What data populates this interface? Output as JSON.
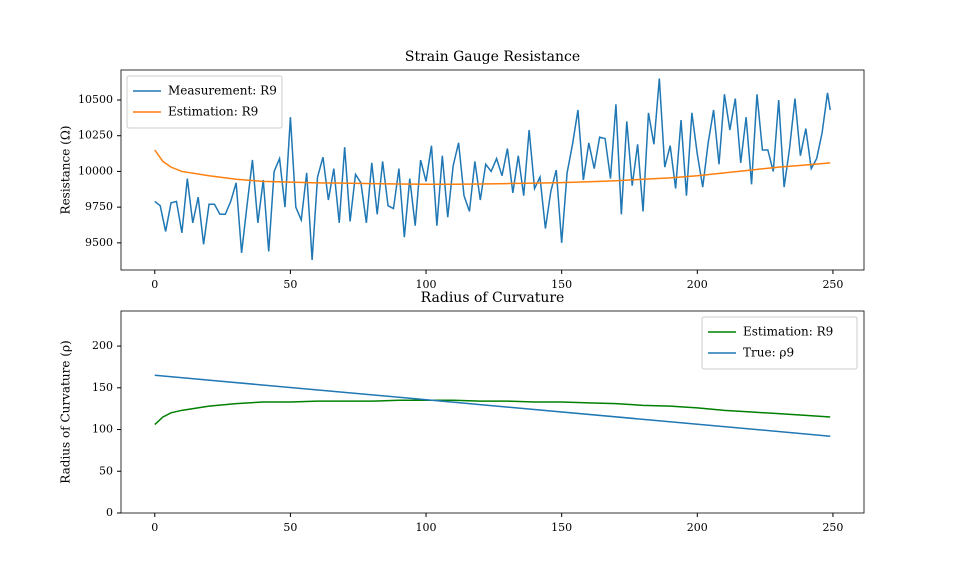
{
  "chart_data": [
    {
      "type": "line",
      "title": "Strain Gauge Resistance",
      "y_label": "Resistance (Ω)",
      "xlim": [
        -12.45,
        261.45
      ],
      "xticks": [
        0,
        50,
        100,
        150,
        200,
        250
      ],
      "ylim": [
        9310,
        10710
      ],
      "yticks": [
        9500,
        9750,
        10000,
        10250,
        10500
      ],
      "legend": "upper left",
      "grid": false,
      "series": [
        {
          "name": "Measurement: R9",
          "color": "#1f77b4",
          "x": [
            0,
            2,
            4,
            6,
            8,
            10,
            12,
            14,
            16,
            18,
            20,
            22,
            24,
            26,
            28,
            30,
            32,
            34,
            36,
            38,
            40,
            42,
            44,
            46,
            48,
            50,
            52,
            54,
            56,
            58,
            60,
            62,
            64,
            66,
            68,
            70,
            72,
            74,
            76,
            78,
            80,
            82,
            84,
            86,
            88,
            90,
            92,
            94,
            96,
            98,
            100,
            102,
            104,
            106,
            108,
            110,
            112,
            114,
            116,
            118,
            120,
            122,
            124,
            126,
            128,
            130,
            132,
            134,
            136,
            138,
            140,
            142,
            144,
            146,
            148,
            150,
            152,
            154,
            156,
            158,
            160,
            162,
            164,
            166,
            168,
            170,
            172,
            174,
            176,
            178,
            180,
            182,
            184,
            186,
            188,
            190,
            192,
            194,
            196,
            198,
            200,
            202,
            204,
            206,
            208,
            210,
            212,
            214,
            216,
            218,
            220,
            222,
            224,
            226,
            228,
            230,
            232,
            234,
            236,
            238,
            240,
            242,
            244,
            246,
            248,
            249
          ],
          "values": [
            9790,
            9760,
            9580,
            9780,
            9790,
            9570,
            9950,
            9640,
            9820,
            9490,
            9770,
            9770,
            9700,
            9700,
            9790,
            9920,
            9430,
            9760,
            10080,
            9640,
            9940,
            9440,
            10000,
            10090,
            9750,
            10380,
            9750,
            9660,
            9990,
            9380,
            9960,
            10100,
            9800,
            10020,
            9640,
            10170,
            9650,
            9980,
            9920,
            9640,
            10060,
            9700,
            10070,
            9760,
            9740,
            10020,
            9540,
            9950,
            9620,
            10080,
            9930,
            10180,
            9620,
            10110,
            9680,
            10040,
            10200,
            9830,
            9720,
            10070,
            9800,
            10050,
            10000,
            10090,
            9970,
            10160,
            9850,
            10110,
            9830,
            10290,
            9880,
            9960,
            9600,
            9860,
            10010,
            9500,
            9990,
            10190,
            10430,
            9940,
            10200,
            10020,
            10240,
            10230,
            9950,
            10470,
            9700,
            10350,
            9900,
            10190,
            9720,
            10410,
            10190,
            10650,
            10030,
            10180,
            9880,
            10360,
            9830,
            10410,
            10120,
            9890,
            10200,
            10430,
            10050,
            10540,
            10290,
            10510,
            10060,
            10380,
            9910,
            10540,
            10150,
            10150,
            10000,
            10500,
            9890,
            10160,
            10510,
            10110,
            10300,
            10020,
            10090,
            10270,
            10550,
            10430
          ]
        },
        {
          "name": "Estimation: R9",
          "color": "#ff7f0e",
          "x": [
            0,
            3,
            6,
            10,
            20,
            30,
            40,
            50,
            60,
            70,
            80,
            90,
            100,
            110,
            120,
            130,
            140,
            150,
            160,
            170,
            180,
            190,
            200,
            210,
            220,
            230,
            240,
            249
          ],
          "values": [
            10150,
            10070,
            10030,
            10000,
            9970,
            9945,
            9930,
            9925,
            9920,
            9918,
            9915,
            9912,
            9910,
            9910,
            9912,
            9915,
            9918,
            9922,
            9928,
            9935,
            9945,
            9955,
            9970,
            9990,
            10010,
            10030,
            10045,
            10060
          ]
        }
      ]
    },
    {
      "type": "line",
      "title": "Radius of Curvature",
      "y_label": "Radius of Curvature (ρ)",
      "xlim": [
        -12.45,
        261.45
      ],
      "xticks": [
        0,
        50,
        100,
        150,
        200,
        250
      ],
      "ylim": [
        0,
        242
      ],
      "yticks": [
        0,
        50,
        100,
        150,
        200
      ],
      "legend": "upper right",
      "grid": false,
      "series": [
        {
          "name": "Estimation: R9",
          "color": "#008000",
          "x": [
            0,
            3,
            6,
            10,
            20,
            30,
            40,
            50,
            60,
            70,
            80,
            90,
            100,
            110,
            120,
            130,
            140,
            150,
            160,
            170,
            180,
            190,
            200,
            210,
            220,
            230,
            240,
            249
          ],
          "values": [
            106,
            115,
            120,
            123,
            128,
            131,
            133,
            133,
            134,
            134,
            134,
            135,
            135,
            135,
            134,
            134,
            133,
            133,
            132,
            131,
            129,
            128,
            126,
            123,
            121,
            119,
            117,
            115
          ]
        },
        {
          "name": "True: ρ9",
          "color": "#1f77b4",
          "x": [
            0,
            249
          ],
          "values": [
            165,
            92
          ]
        }
      ]
    }
  ]
}
